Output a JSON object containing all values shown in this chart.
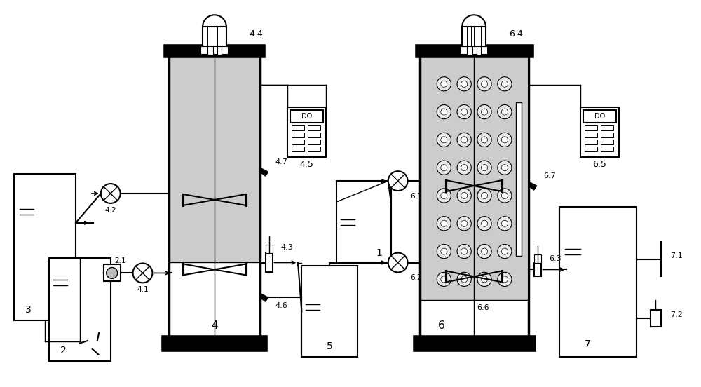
{
  "bg_color": "#ffffff",
  "lc": "#000000",
  "wc": "#cccccc",
  "figsize": [
    10.0,
    5.52
  ],
  "dpi": 100
}
